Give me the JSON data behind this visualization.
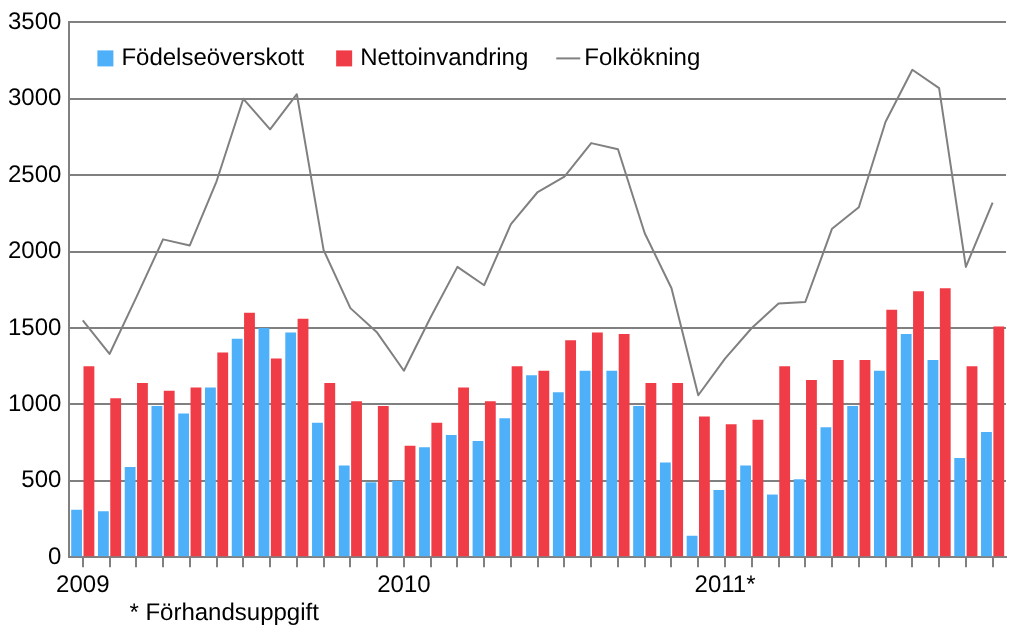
{
  "chart_data": {
    "type": "bar",
    "categories": [
      "2009",
      null,
      null,
      null,
      null,
      null,
      null,
      null,
      null,
      null,
      null,
      null,
      "2010",
      null,
      null,
      null,
      null,
      null,
      null,
      null,
      null,
      null,
      null,
      null,
      "2011*",
      null,
      null,
      null,
      null,
      null,
      null,
      null,
      null,
      null,
      null
    ],
    "series": [
      {
        "name": "Födelseöverskott",
        "color": "#4db0f9",
        "values": [
          310,
          300,
          590,
          990,
          940,
          1110,
          1430,
          1500,
          1470,
          880,
          600,
          490,
          500,
          720,
          800,
          760,
          910,
          1190,
          1080,
          1220,
          1220,
          990,
          620,
          140,
          440,
          600,
          410,
          510,
          850,
          990,
          1220,
          1460,
          1290,
          650,
          820
        ]
      },
      {
        "name": "Nettoinvandring",
        "color": "#f03c46",
        "values": [
          1250,
          1040,
          1140,
          1090,
          1110,
          1340,
          1600,
          1300,
          1560,
          1140,
          1020,
          990,
          730,
          880,
          1110,
          1020,
          1250,
          1220,
          1420,
          1470,
          1460,
          1140,
          1140,
          920,
          870,
          900,
          1250,
          1160,
          1290,
          1290,
          1620,
          1740,
          1760,
          1250,
          1510
        ]
      },
      {
        "name": "Folkökning",
        "type": "line",
        "color": "#808080",
        "values": [
          1550,
          1330,
          1700,
          2080,
          2040,
          2460,
          3000,
          2800,
          3030,
          2010,
          1630,
          1470,
          1220,
          1570,
          1900,
          1780,
          2180,
          2390,
          2490,
          2710,
          2670,
          2120,
          1760,
          1060,
          1300,
          1500,
          1660,
          1670,
          2150,
          2290,
          2850,
          3190,
          3070,
          1900,
          2320
        ]
      }
    ],
    "ylim": [
      0,
      3500
    ],
    "yticks": [
      0,
      500,
      1000,
      1500,
      2000,
      2500,
      3000,
      3500
    ],
    "grid": "y",
    "legend": "top left",
    "marker": "none",
    "annotations": [
      "* Förhandsuppgift"
    ]
  }
}
